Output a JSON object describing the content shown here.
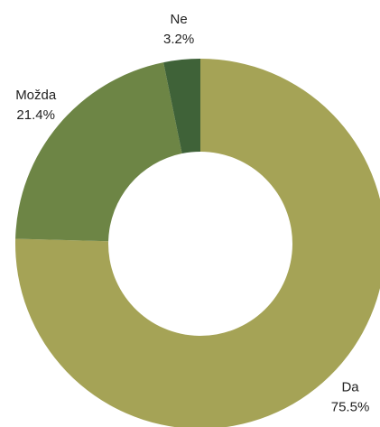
{
  "chart_data": {
    "type": "donut",
    "categories": [
      "Da",
      "Možda",
      "Ne"
    ],
    "values": [
      75.5,
      21.4,
      3.2
    ],
    "value_labels": [
      "75.5%",
      "21.4%",
      "3.2%"
    ],
    "colors": [
      "#a5a356",
      "#6d8545",
      "#3f6238"
    ]
  }
}
